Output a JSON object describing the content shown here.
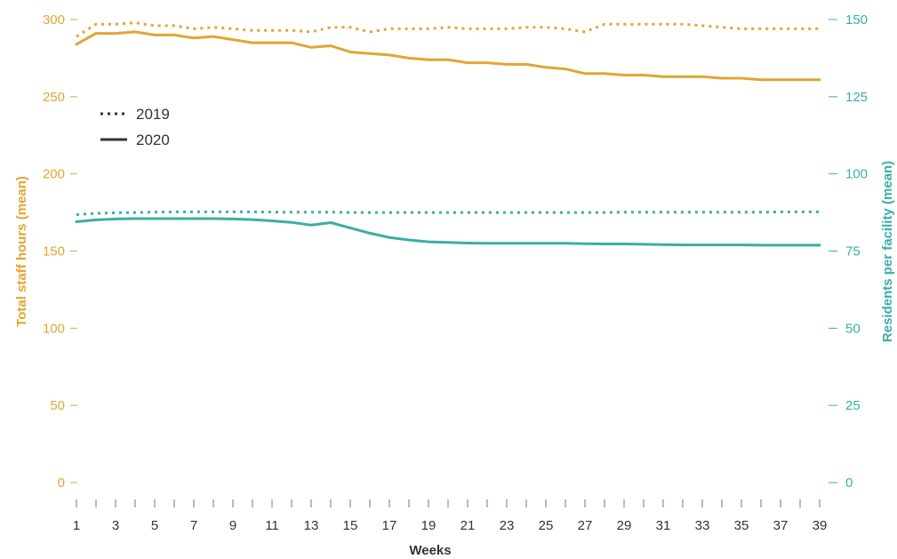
{
  "colors": {
    "staff": "#E1A537",
    "residents": "#3BAEA4",
    "legend_line": "#333333",
    "text": "#333333",
    "tick_mark": "#777777"
  },
  "chart_data": {
    "type": "line",
    "xlabel": "Weeks",
    "ylabel_left": "Total staff hours (mean)",
    "ylabel_right": "Residents per facility (mean)",
    "ylim_left": [
      0,
      300
    ],
    "ylim_right": [
      0,
      150
    ],
    "xlim": [
      1,
      39
    ],
    "x_tick_labels": [
      1,
      3,
      5,
      7,
      9,
      11,
      13,
      15,
      17,
      19,
      21,
      23,
      25,
      27,
      29,
      31,
      33,
      35,
      37,
      39
    ],
    "y_left_ticks": [
      0,
      50,
      100,
      150,
      200,
      250,
      300
    ],
    "y_right_ticks": [
      0,
      25,
      50,
      75,
      100,
      125,
      150
    ],
    "grid": false,
    "legend": {
      "position": "top-left",
      "entries": [
        {
          "label": "2019",
          "style": "dotted"
        },
        {
          "label": "2020",
          "style": "solid"
        }
      ]
    },
    "x": [
      1,
      2,
      3,
      4,
      5,
      6,
      7,
      8,
      9,
      10,
      11,
      12,
      13,
      14,
      15,
      16,
      17,
      18,
      19,
      20,
      21,
      22,
      23,
      24,
      25,
      26,
      27,
      28,
      29,
      30,
      31,
      32,
      33,
      34,
      35,
      36,
      37,
      38,
      39
    ],
    "series": [
      {
        "name": "2019",
        "measure": "Total staff hours (mean)",
        "axis": "left",
        "style": "dotted",
        "color": "#E1A537",
        "values": [
          289,
          297,
          297,
          298,
          296,
          296,
          294,
          295,
          294,
          293,
          293,
          293,
          292,
          295,
          295,
          292,
          294,
          294,
          294,
          295,
          294,
          294,
          294,
          295,
          295,
          294,
          292,
          297,
          297,
          297,
          297,
          297,
          296,
          295,
          294,
          294,
          294,
          294,
          294
        ]
      },
      {
        "name": "2020",
        "measure": "Total staff hours (mean)",
        "axis": "left",
        "style": "solid",
        "color": "#E1A537",
        "values": [
          284,
          291,
          291,
          292,
          290,
          290,
          288,
          289,
          287,
          285,
          285,
          285,
          282,
          283,
          279,
          278,
          277,
          275,
          274,
          274,
          272,
          272,
          271,
          271,
          269,
          268,
          265,
          265,
          264,
          264,
          263,
          263,
          263,
          262,
          262,
          261,
          261,
          261,
          261
        ]
      },
      {
        "name": "2019",
        "measure": "Residents per facility (mean)",
        "axis": "right",
        "style": "dotted",
        "color": "#3BAEA4",
        "values": [
          86.8,
          87.2,
          87.4,
          87.5,
          87.6,
          87.7,
          87.7,
          87.7,
          87.7,
          87.7,
          87.6,
          87.6,
          87.6,
          87.6,
          87.5,
          87.5,
          87.5,
          87.5,
          87.5,
          87.5,
          87.5,
          87.5,
          87.5,
          87.5,
          87.5,
          87.5,
          87.5,
          87.5,
          87.6,
          87.6,
          87.6,
          87.6,
          87.6,
          87.6,
          87.6,
          87.6,
          87.7,
          87.7,
          87.7
        ]
      },
      {
        "name": "2020",
        "measure": "Residents per facility (mean)",
        "axis": "right",
        "style": "solid",
        "color": "#3BAEA4",
        "values": [
          84.5,
          85.1,
          85.4,
          85.5,
          85.5,
          85.5,
          85.5,
          85.5,
          85.4,
          85.2,
          84.8,
          84.3,
          83.4,
          84.2,
          82.5,
          80.8,
          79.4,
          78.6,
          78.0,
          77.8,
          77.6,
          77.5,
          77.5,
          77.5,
          77.5,
          77.5,
          77.4,
          77.3,
          77.3,
          77.2,
          77.1,
          77.0,
          77.0,
          77.0,
          77.0,
          76.9,
          76.9,
          76.9,
          76.9
        ]
      }
    ]
  }
}
